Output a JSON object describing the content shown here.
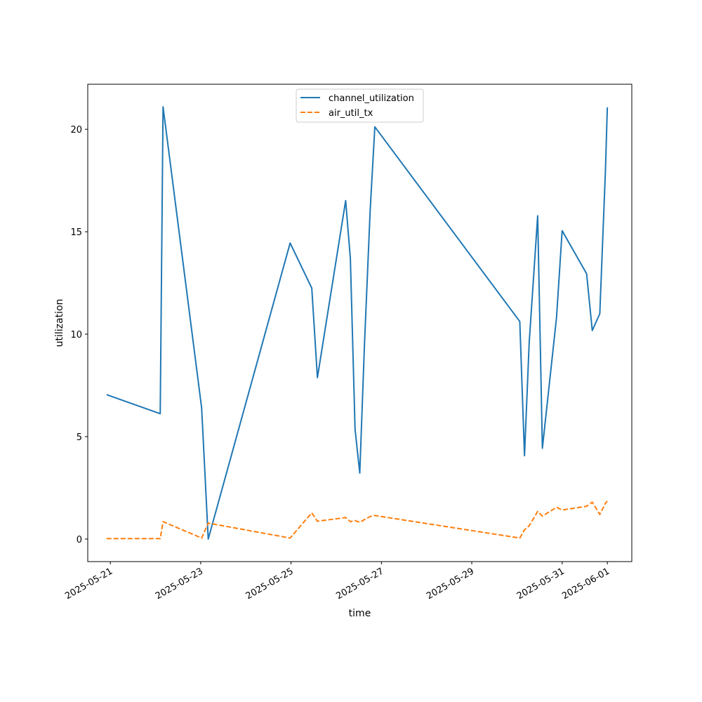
{
  "chart_data": {
    "type": "line",
    "title": "",
    "xlabel": "time",
    "ylabel": "utilization",
    "x_scale": "time",
    "xlim": [
      "2025-05-20T12:00",
      "2025-06-01T13:00"
    ],
    "ylim": [
      -1.1,
      22.2
    ],
    "x_ticks": [
      "2025-05-21",
      "2025-05-23",
      "2025-05-25",
      "2025-05-27",
      "2025-05-29",
      "2025-05-31",
      "2025-06-01"
    ],
    "y_ticks": [
      0,
      5,
      10,
      15,
      20
    ],
    "grid": false,
    "legend_position": "top-center",
    "series": [
      {
        "name": "channel_utilization",
        "color": "#1f77b4",
        "style": "solid",
        "points": [
          {
            "x": "2025-05-20T22:00",
            "y": 7.05
          },
          {
            "x": "2025-05-22T02:30",
            "y": 6.12
          },
          {
            "x": "2025-05-22T04:00",
            "y": 21.1
          },
          {
            "x": "2025-05-23T00:30",
            "y": 6.4
          },
          {
            "x": "2025-05-23T04:00",
            "y": 0.0
          },
          {
            "x": "2025-05-24T23:30",
            "y": 14.45
          },
          {
            "x": "2025-05-25T11:00",
            "y": 12.25
          },
          {
            "x": "2025-05-25T14:00",
            "y": 7.88
          },
          {
            "x": "2025-05-26T05:00",
            "y": 16.52
          },
          {
            "x": "2025-05-26T07:30",
            "y": 13.7
          },
          {
            "x": "2025-05-26T10:00",
            "y": 5.35
          },
          {
            "x": "2025-05-26T12:30",
            "y": 3.22
          },
          {
            "x": "2025-05-26T15:00",
            "y": 9.5
          },
          {
            "x": "2025-05-26T18:00",
            "y": 16.0
          },
          {
            "x": "2025-05-26T20:30",
            "y": 20.12
          },
          {
            "x": "2025-05-30T01:30",
            "y": 10.62
          },
          {
            "x": "2025-05-30T04:00",
            "y": 4.07
          },
          {
            "x": "2025-05-30T06:30",
            "y": 9.6
          },
          {
            "x": "2025-05-30T11:00",
            "y": 15.78
          },
          {
            "x": "2025-05-30T13:30",
            "y": 4.43
          },
          {
            "x": "2025-05-30T21:00",
            "y": 10.8
          },
          {
            "x": "2025-05-31T00:00",
            "y": 15.05
          },
          {
            "x": "2025-05-31T13:00",
            "y": 12.95
          },
          {
            "x": "2025-05-31T16:00",
            "y": 10.18
          },
          {
            "x": "2025-05-31T20:00",
            "y": 11.0
          },
          {
            "x": "2025-05-31T23:00",
            "y": 18.0
          },
          {
            "x": "2025-06-01T00:00",
            "y": 21.07
          }
        ]
      },
      {
        "name": "air_util_tx",
        "color": "#ff7f0e",
        "style": "dashed",
        "points": [
          {
            "x": "2025-05-20T22:00",
            "y": 0.02
          },
          {
            "x": "2025-05-22T02:30",
            "y": 0.02
          },
          {
            "x": "2025-05-22T04:00",
            "y": 0.85
          },
          {
            "x": "2025-05-23T00:30",
            "y": 0.05
          },
          {
            "x": "2025-05-23T04:00",
            "y": 0.78
          },
          {
            "x": "2025-05-24T23:30",
            "y": 0.05
          },
          {
            "x": "2025-05-25T11:00",
            "y": 1.28
          },
          {
            "x": "2025-05-25T14:00",
            "y": 0.87
          },
          {
            "x": "2025-05-26T05:00",
            "y": 1.05
          },
          {
            "x": "2025-05-26T07:30",
            "y": 0.85
          },
          {
            "x": "2025-05-26T10:00",
            "y": 0.9
          },
          {
            "x": "2025-05-26T12:30",
            "y": 0.82
          },
          {
            "x": "2025-05-26T15:00",
            "y": 0.95
          },
          {
            "x": "2025-05-26T18:00",
            "y": 1.1
          },
          {
            "x": "2025-05-26T20:30",
            "y": 1.15
          },
          {
            "x": "2025-05-30T01:30",
            "y": 0.05
          },
          {
            "x": "2025-05-30T04:00",
            "y": 0.45
          },
          {
            "x": "2025-05-30T06:30",
            "y": 0.65
          },
          {
            "x": "2025-05-30T11:00",
            "y": 1.35
          },
          {
            "x": "2025-05-30T13:30",
            "y": 1.12
          },
          {
            "x": "2025-05-30T21:00",
            "y": 1.55
          },
          {
            "x": "2025-05-31T00:00",
            "y": 1.42
          },
          {
            "x": "2025-05-31T13:00",
            "y": 1.6
          },
          {
            "x": "2025-05-31T16:00",
            "y": 1.8
          },
          {
            "x": "2025-05-31T20:00",
            "y": 1.2
          },
          {
            "x": "2025-05-31T23:00",
            "y": 1.75
          },
          {
            "x": "2025-06-01T00:00",
            "y": 1.85
          }
        ]
      }
    ]
  }
}
